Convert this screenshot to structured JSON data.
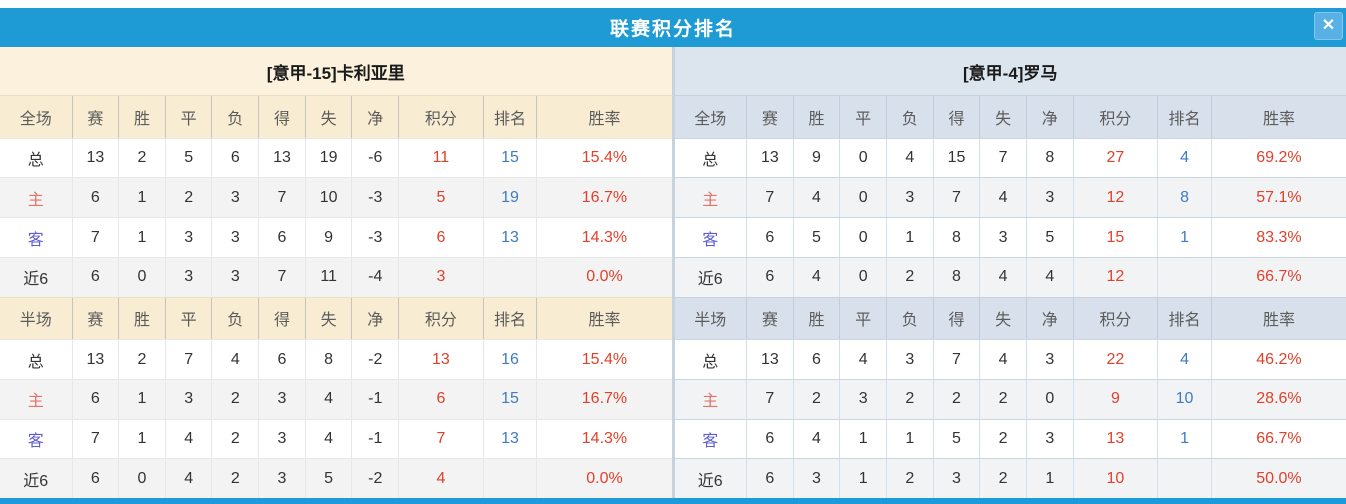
{
  "dialog": {
    "title": "联赛积分排名",
    "close_icon": "✕"
  },
  "columns": [
    "赛",
    "胜",
    "平",
    "负",
    "得",
    "失",
    "净",
    "积分",
    "排名",
    "胜率"
  ],
  "colors": {
    "titlebar_blue": "#1E9AD5",
    "close_button_blue": "#58B1E4",
    "bottom_bar_blue": "#1C9AD9",
    "left_title_cream": "#FBF1DC",
    "left_header_cream": "#F8EDD2",
    "right_title_gray": "#DCE5EE",
    "right_header_gray": "#D8E1EB",
    "points_red": "#DF412A",
    "rank_blue": "#3E7CBE",
    "home_label_red": "#E3726B",
    "away_label_blue": "#5E5ED2"
  },
  "teams": [
    {
      "name": "[意甲-15]卡利亚里",
      "sections": [
        {
          "title": "全场",
          "rows": [
            {
              "label": "总",
              "type": "total",
              "stats": [
                "13",
                "2",
                "5",
                "6",
                "13",
                "19",
                "-6"
              ],
              "points": "11",
              "rank": "15",
              "rate": "15.4%"
            },
            {
              "label": "主",
              "type": "home",
              "stats": [
                "6",
                "1",
                "2",
                "3",
                "7",
                "10",
                "-3"
              ],
              "points": "5",
              "rank": "19",
              "rate": "16.7%"
            },
            {
              "label": "客",
              "type": "away",
              "stats": [
                "7",
                "1",
                "3",
                "3",
                "6",
                "9",
                "-3"
              ],
              "points": "6",
              "rank": "13",
              "rate": "14.3%"
            },
            {
              "label": "近6",
              "type": "recent",
              "stats": [
                "6",
                "0",
                "3",
                "3",
                "7",
                "11",
                "-4"
              ],
              "points": "3",
              "rank": "",
              "rate": "0.0%"
            }
          ]
        },
        {
          "title": "半场",
          "rows": [
            {
              "label": "总",
              "type": "total",
              "stats": [
                "13",
                "2",
                "7",
                "4",
                "6",
                "8",
                "-2"
              ],
              "points": "13",
              "rank": "16",
              "rate": "15.4%"
            },
            {
              "label": "主",
              "type": "home",
              "stats": [
                "6",
                "1",
                "3",
                "2",
                "3",
                "4",
                "-1"
              ],
              "points": "6",
              "rank": "15",
              "rate": "16.7%"
            },
            {
              "label": "客",
              "type": "away",
              "stats": [
                "7",
                "1",
                "4",
                "2",
                "3",
                "4",
                "-1"
              ],
              "points": "7",
              "rank": "13",
              "rate": "14.3%"
            },
            {
              "label": "近6",
              "type": "recent",
              "stats": [
                "6",
                "0",
                "4",
                "2",
                "3",
                "5",
                "-2"
              ],
              "points": "4",
              "rank": "",
              "rate": "0.0%"
            }
          ]
        }
      ]
    },
    {
      "name": "[意甲-4]罗马",
      "sections": [
        {
          "title": "全场",
          "rows": [
            {
              "label": "总",
              "type": "total",
              "stats": [
                "13",
                "9",
                "0",
                "4",
                "15",
                "7",
                "8"
              ],
              "points": "27",
              "rank": "4",
              "rate": "69.2%"
            },
            {
              "label": "主",
              "type": "home",
              "stats": [
                "7",
                "4",
                "0",
                "3",
                "7",
                "4",
                "3"
              ],
              "points": "12",
              "rank": "8",
              "rate": "57.1%"
            },
            {
              "label": "客",
              "type": "away",
              "stats": [
                "6",
                "5",
                "0",
                "1",
                "8",
                "3",
                "5"
              ],
              "points": "15",
              "rank": "1",
              "rate": "83.3%"
            },
            {
              "label": "近6",
              "type": "recent",
              "stats": [
                "6",
                "4",
                "0",
                "2",
                "8",
                "4",
                "4"
              ],
              "points": "12",
              "rank": "",
              "rate": "66.7%"
            }
          ]
        },
        {
          "title": "半场",
          "rows": [
            {
              "label": "总",
              "type": "total",
              "stats": [
                "13",
                "6",
                "4",
                "3",
                "7",
                "4",
                "3"
              ],
              "points": "22",
              "rank": "4",
              "rate": "46.2%"
            },
            {
              "label": "主",
              "type": "home",
              "stats": [
                "7",
                "2",
                "3",
                "2",
                "2",
                "2",
                "0"
              ],
              "points": "9",
              "rank": "10",
              "rate": "28.6%"
            },
            {
              "label": "客",
              "type": "away",
              "stats": [
                "6",
                "4",
                "1",
                "1",
                "5",
                "2",
                "3"
              ],
              "points": "13",
              "rank": "1",
              "rate": "66.7%"
            },
            {
              "label": "近6",
              "type": "recent",
              "stats": [
                "6",
                "3",
                "1",
                "2",
                "3",
                "2",
                "1"
              ],
              "points": "10",
              "rank": "",
              "rate": "50.0%"
            }
          ]
        }
      ]
    }
  ]
}
